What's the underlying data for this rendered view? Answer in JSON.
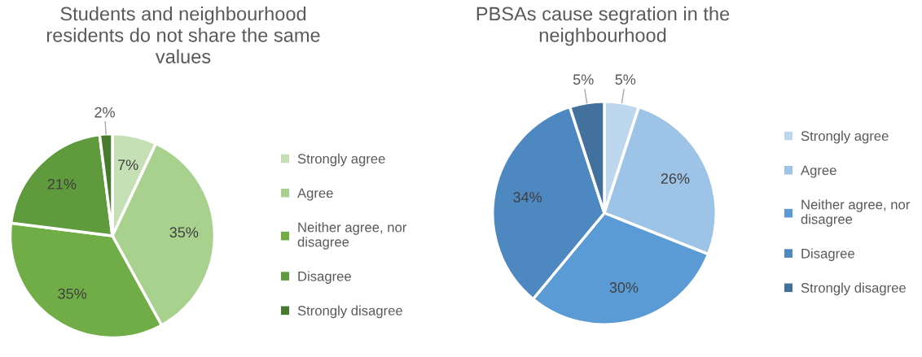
{
  "chart_data": [
    {
      "type": "pie",
      "title": "Students and neighbourhood\nresidents do not share the same\nvalues",
      "categories": [
        "Strongly agree",
        "Agree",
        "Neither agree, nor\ndisagree",
        "Disagree",
        "Strongly disagree"
      ],
      "values": [
        7,
        35,
        35,
        21,
        2
      ],
      "value_labels": [
        "7%",
        "35%",
        "35%",
        "21%",
        "2%"
      ],
      "colors": [
        "#c5e0b4",
        "#a9d18e",
        "#70ad47",
        "#5f9a3c",
        "#467a2c"
      ],
      "legend": "right"
    },
    {
      "type": "pie",
      "title": "PBSAs cause segration in the\nneighbourhood",
      "categories": [
        "Strongly agree",
        "Agree",
        "Neither agree, nor\ndisagree",
        "Disagree",
        "Strongly disagree"
      ],
      "values": [
        5,
        26,
        30,
        34,
        5
      ],
      "value_labels": [
        "5%",
        "26%",
        "30%",
        "34%",
        "5%"
      ],
      "colors": [
        "#bdd7ee",
        "#9dc3e6",
        "#5b9bd5",
        "#4e88c0",
        "#41719c"
      ],
      "legend": "right"
    }
  ]
}
